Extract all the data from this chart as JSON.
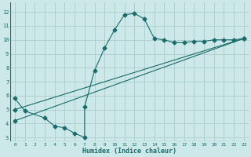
{
  "xlabel": "Humidex (Indice chaleur)",
  "bg_color": "#cce8e8",
  "grid_color": "#aacccc",
  "line_color": "#1a6b6b",
  "xlim": [
    -0.5,
    23.5
  ],
  "ylim": [
    2.7,
    12.7
  ],
  "xticks": [
    0,
    1,
    2,
    3,
    4,
    5,
    6,
    7,
    8,
    9,
    10,
    11,
    12,
    13,
    14,
    15,
    16,
    17,
    18,
    19,
    20,
    21,
    22,
    23
  ],
  "yticks": [
    3,
    4,
    5,
    6,
    7,
    8,
    9,
    10,
    11,
    12
  ],
  "line1_x": [
    0,
    1,
    3,
    4,
    5,
    6,
    7,
    7,
    8,
    9,
    10,
    11,
    12,
    13,
    14,
    15,
    16,
    17,
    18,
    19,
    20,
    21,
    22,
    23
  ],
  "line1_y": [
    5.8,
    4.9,
    4.4,
    3.8,
    3.7,
    3.3,
    3.0,
    5.2,
    7.8,
    9.4,
    10.7,
    11.8,
    11.9,
    11.5,
    10.1,
    10.0,
    9.8,
    9.8,
    9.9,
    9.9,
    10.0,
    10.0,
    10.0,
    10.1
  ],
  "line2_x": [
    0,
    23
  ],
  "line2_y": [
    4.2,
    10.1
  ],
  "line3_x": [
    0,
    23
  ],
  "line3_y": [
    5.0,
    10.1
  ]
}
